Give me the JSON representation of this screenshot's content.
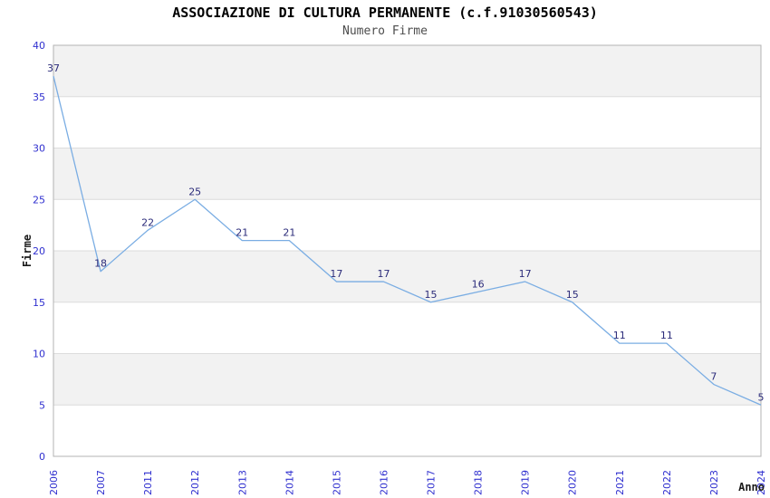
{
  "header": {
    "title": "ASSOCIAZIONE DI CULTURA PERMANENTE (c.f.91030560543)",
    "subtitle": "Numero Firme"
  },
  "chart_data": {
    "type": "line",
    "title": "ASSOCIAZIONE DI CULTURA PERMANENTE (c.f.91030560543)",
    "subtitle": "Numero Firme",
    "xlabel": "Anno",
    "ylabel": "Firme",
    "categories": [
      "2006",
      "2007",
      "2011",
      "2012",
      "2013",
      "2014",
      "2015",
      "2016",
      "2017",
      "2018",
      "2019",
      "2020",
      "2021",
      "2022",
      "2023",
      "2024"
    ],
    "values": [
      37,
      18,
      22,
      25,
      21,
      21,
      17,
      17,
      15,
      16,
      17,
      15,
      11,
      11,
      7,
      5
    ],
    "ylim": [
      0,
      40
    ],
    "ytick_step": 5,
    "yticks": [
      0,
      5,
      10,
      15,
      20,
      25,
      30,
      35,
      40
    ],
    "grid": "horizontal-bands-alternating",
    "legend": "none",
    "point_labels_shown": true,
    "colors": {
      "line": "#7aade3",
      "data_label": "#2b2b7a",
      "tick_label": "#3030cf",
      "band_gray": "#f2f2f2",
      "band_white": "#ffffff",
      "gridline": "#dcdcdc",
      "plot_border": "#b3b3b3",
      "title": "#000000",
      "subtitle": "#4d4d4d",
      "axis_title": "#1a1a1a",
      "background": "#ffffff"
    }
  }
}
